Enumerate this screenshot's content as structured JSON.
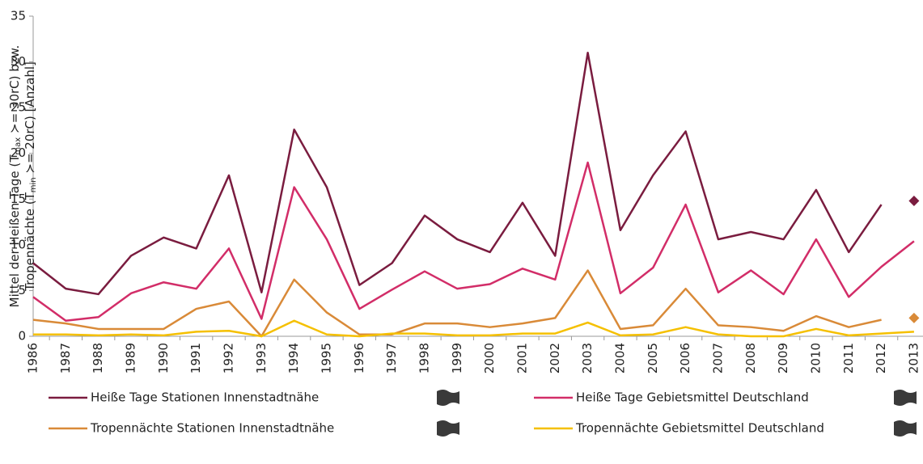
{
  "chart_data": {
    "type": "line",
    "y_label": [
      [
        "Mittel der Heißen Tage (T",
        "max",
        " ≻= 30rC) bzw."
      ],
      [
        "Tropennächte (T",
        "min",
        " ≻= 20rC) [Anzahl]"
      ]
    ],
    "categories": [
      "1986",
      "1987",
      "1988",
      "1989",
      "1990",
      "1991",
      "1992",
      "1993",
      "1994",
      "1995",
      "1996",
      "1997",
      "1998",
      "1999",
      "2000",
      "2001",
      "2002",
      "2003",
      "2004",
      "2005",
      "2006",
      "2007",
      "2008",
      "2009",
      "2010",
      "2011",
      "2012",
      "2013"
    ],
    "series": [
      {
        "name": "Heiße Tage Stationen Innenstadtnähe",
        "color": "#7a1c3f",
        "end_marker": "diamond",
        "values": [
          8.0,
          5.2,
          4.6,
          8.8,
          10.8,
          9.6,
          17.6,
          4.8,
          22.6,
          16.3,
          5.6,
          8.0,
          13.2,
          10.6,
          9.2,
          14.6,
          8.8,
          31.0,
          11.6,
          17.6,
          22.4,
          10.6,
          11.4,
          10.6,
          16.0,
          9.2,
          14.4,
          14.8
        ]
      },
      {
        "name": "Heiße Tage Gebietsmittel Deutschland",
        "color": "#d22d68",
        "values": [
          4.3,
          1.7,
          2.1,
          4.7,
          5.9,
          5.2,
          9.6,
          1.9,
          16.3,
          10.6,
          3.0,
          5.1,
          7.1,
          5.2,
          5.7,
          7.4,
          6.2,
          19.0,
          4.7,
          7.5,
          14.4,
          4.8,
          7.2,
          4.6,
          10.6,
          4.3,
          7.6,
          10.4
        ]
      },
      {
        "name": "Tropennächte Stationen Innenstadtnähe",
        "color": "#d98a38",
        "end_marker": "diamond",
        "values": [
          1.8,
          1.4,
          0.8,
          0.8,
          0.8,
          3.0,
          3.8,
          0.0,
          6.2,
          2.6,
          0.2,
          0.2,
          1.4,
          1.4,
          1.0,
          1.4,
          2.0,
          7.2,
          0.8,
          1.2,
          5.2,
          1.2,
          1.0,
          0.6,
          2.2,
          1.0,
          1.8,
          2.0
        ]
      },
      {
        "name": "Tropennächte Gebietsmittel Deutschland",
        "color": "#f5c000",
        "values": [
          0.2,
          0.2,
          0.1,
          0.2,
          0.1,
          0.5,
          0.6,
          0.0,
          1.7,
          0.2,
          0.0,
          0.3,
          0.3,
          0.1,
          0.1,
          0.3,
          0.3,
          1.5,
          0.1,
          0.2,
          1.0,
          0.2,
          0.0,
          0.0,
          0.8,
          0.1,
          0.3,
          0.5
        ]
      }
    ],
    "ylim": [
      0,
      35
    ],
    "yticks": [
      0,
      5,
      10,
      15,
      20,
      25,
      30,
      35
    ],
    "grid": false
  }
}
